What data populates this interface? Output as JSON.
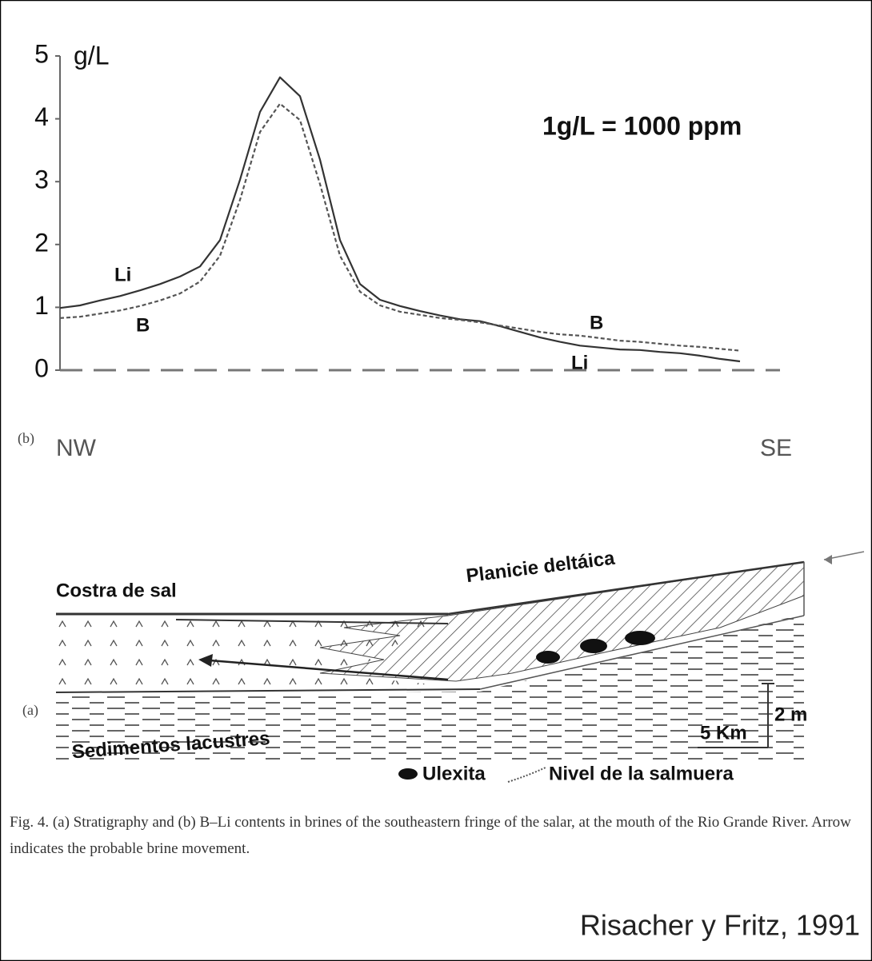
{
  "chart_data": {
    "type": "line",
    "y_label": "g/L",
    "annotation": "1g/L = 1000 ppm",
    "panel_label": "(b)",
    "categories": [
      "NW",
      null,
      null,
      null,
      null,
      null,
      null,
      null,
      null,
      null,
      null,
      null,
      null,
      null,
      null,
      null,
      null,
      null,
      null,
      null,
      null,
      null,
      null,
      null,
      null,
      null,
      null,
      null,
      null,
      null,
      null,
      null,
      null,
      null,
      null,
      null,
      "SE"
    ],
    "series": [
      {
        "name": "Li",
        "color": "#333333",
        "style": "solid",
        "values": [
          0.99,
          1.03,
          1.11,
          1.18,
          1.27,
          1.37,
          1.49,
          1.65,
          2.07,
          3.03,
          4.11,
          4.66,
          4.36,
          3.35,
          2.07,
          1.37,
          1.12,
          1.02,
          0.94,
          0.87,
          0.81,
          0.78,
          0.7,
          0.61,
          0.52,
          0.45,
          0.39,
          0.36,
          0.33,
          0.32,
          0.29,
          0.27,
          0.23,
          0.18,
          0.14,
          null,
          null
        ]
      },
      {
        "name": "B",
        "color": "#555555",
        "style": "dashed",
        "values": [
          0.83,
          0.85,
          0.9,
          0.95,
          1.02,
          1.11,
          1.22,
          1.41,
          1.82,
          2.71,
          3.79,
          4.24,
          3.98,
          2.96,
          1.82,
          1.25,
          1.03,
          0.93,
          0.88,
          0.83,
          0.8,
          0.76,
          0.71,
          0.66,
          0.61,
          0.57,
          0.55,
          0.51,
          0.47,
          0.45,
          0.42,
          0.39,
          0.37,
          0.34,
          0.31,
          null,
          null
        ]
      }
    ],
    "ylim": [
      0,
      5
    ],
    "yticks": [
      0,
      1,
      2,
      3,
      4,
      5
    ]
  },
  "diagram": {
    "panel_label": "(a)",
    "labels": {
      "halite_crust": "Costra de sal",
      "delta": "Planicie deltáica",
      "lacustrine": "Sedimentos lacustres"
    },
    "scale": {
      "vertical": "2 m",
      "horizontal": "5 Km"
    },
    "legend": {
      "ulexite": "Ulexita",
      "brine_level": "Nivel de la salmuera"
    }
  },
  "caption": "Fig. 4. (a) Stratigraphy and (b) B–Li contents in brines of the southeastern fringe of the salar, at the mouth of the Rio Grande River. Arrow indicates the probable brine movement.",
  "credit": "Risacher y Fritz, 1991"
}
